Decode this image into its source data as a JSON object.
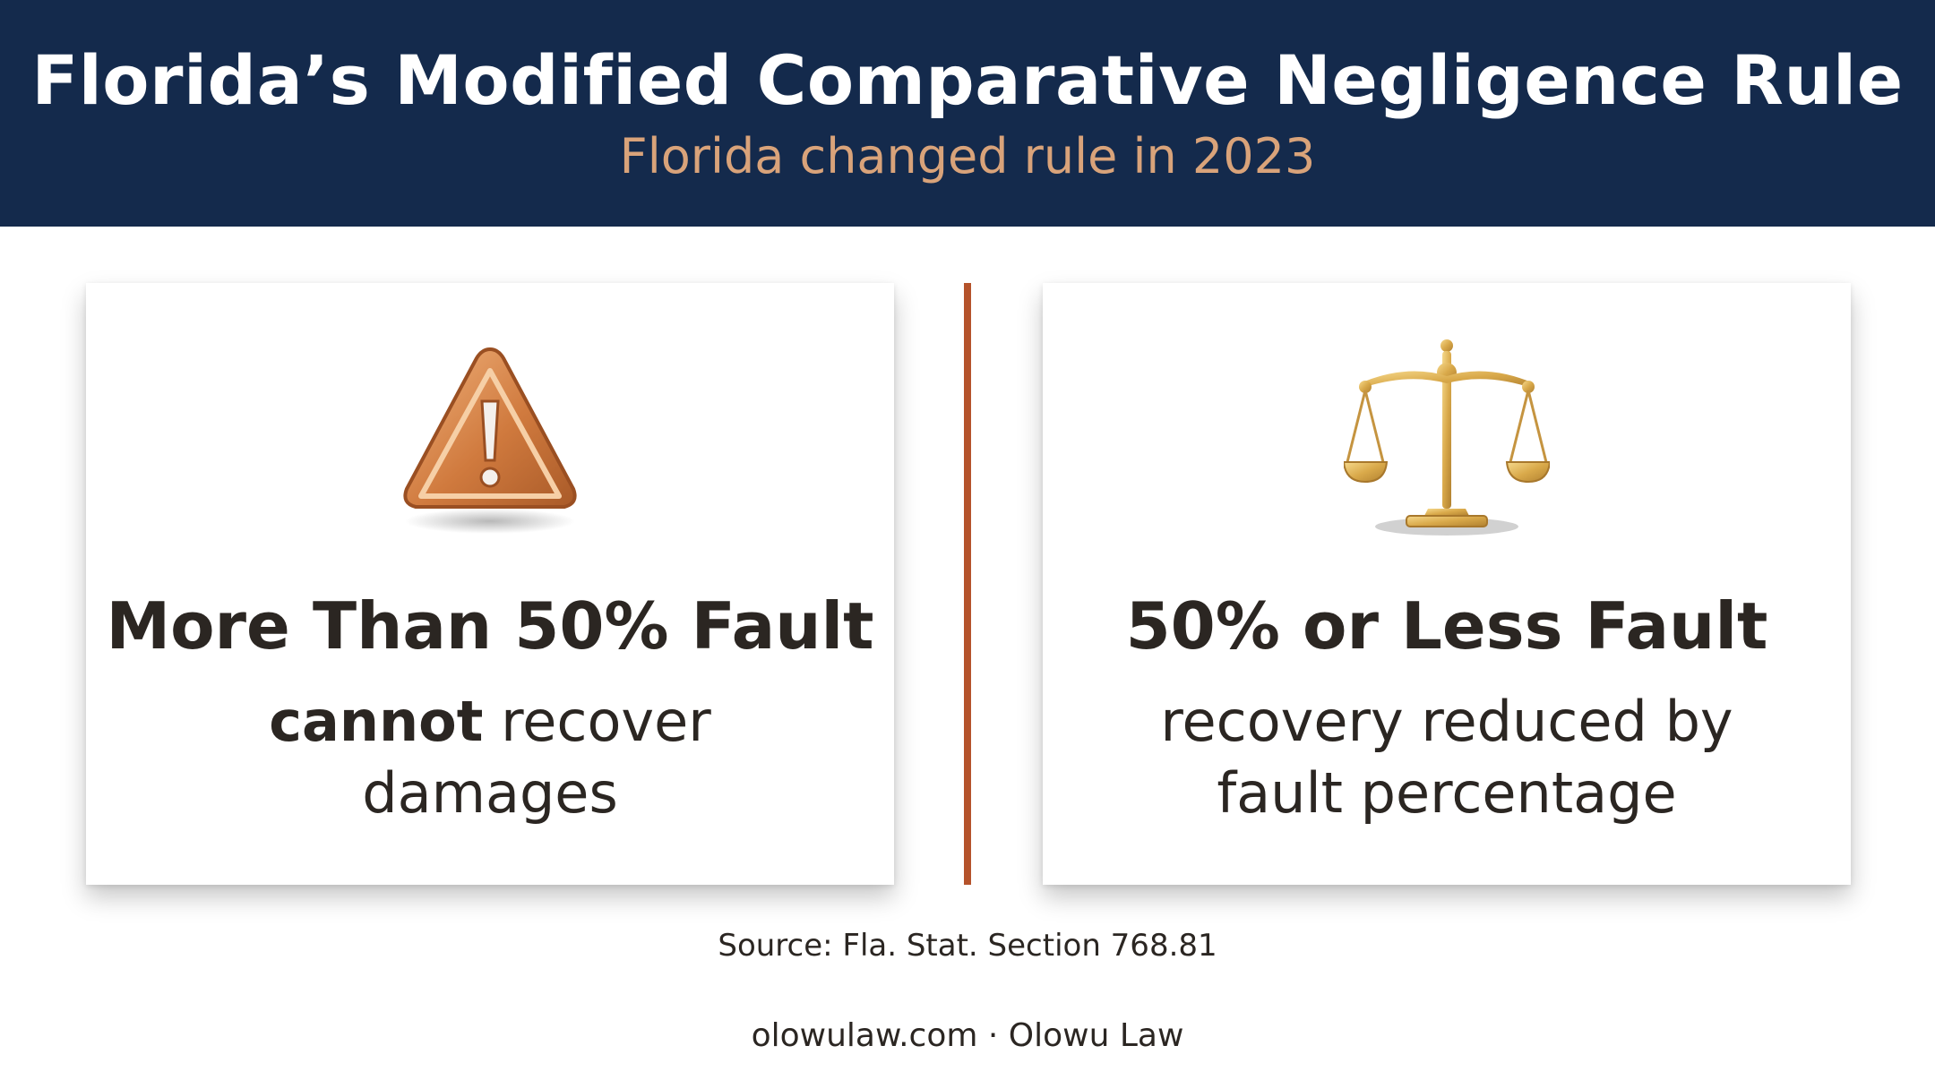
{
  "header": {
    "title": "Florida’s Modified Comparative Negligence Rule",
    "subtitle": "Florida changed rule in 2023"
  },
  "cards": [
    {
      "icon": "warning-triangle-icon",
      "heading": "More Than 50% Fault",
      "body_strong": "cannot",
      "body_rest": " recover",
      "body_line2": "damages"
    },
    {
      "icon": "scales-of-justice-icon",
      "heading": "50% or Less Fault",
      "body_line1": "recovery reduced by",
      "body_line2": "fault percentage"
    }
  ],
  "source": "Source: Fla. Stat. Section 768.81",
  "footer": "olowulaw.com · Olowu Law",
  "colors": {
    "header_bg": "#142a4c",
    "subtitle": "#d9a37a",
    "divider": "#b5532b",
    "warning": "#c9773f",
    "gold": "#d9a94a"
  }
}
